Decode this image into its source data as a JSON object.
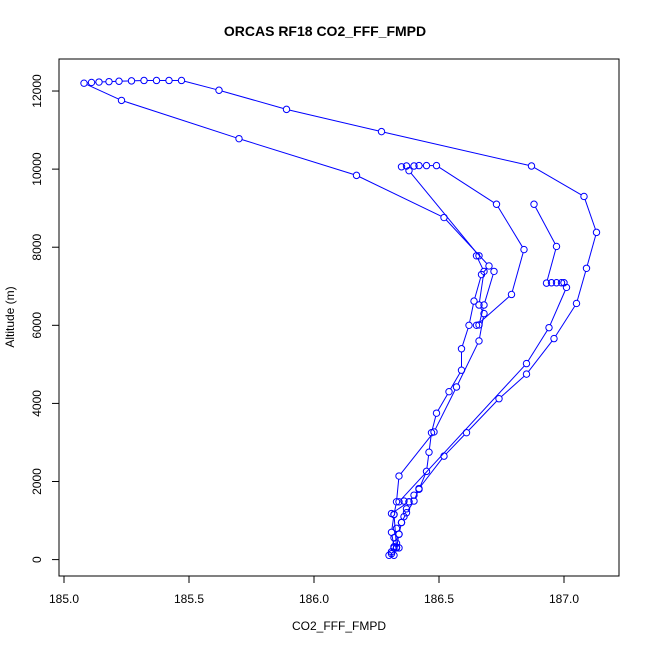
{
  "chart_data": {
    "type": "scatter",
    "title": "ORCAS RF18 CO2_FFF_FMPD",
    "xlabel": "CO2_FFF_FMPD",
    "ylabel": "Altitude (m)",
    "xlim": [
      184.98,
      187.22
    ],
    "ylim": [
      -420,
      12820
    ],
    "x_ticks": [
      {
        "value": 185.0,
        "label": "185.0"
      },
      {
        "value": 185.5,
        "label": "185.5"
      },
      {
        "value": 186.0,
        "label": "186.0"
      },
      {
        "value": 186.5,
        "label": "186.5"
      },
      {
        "value": 187.0,
        "label": "187.0"
      }
    ],
    "y_ticks": [
      {
        "value": 0,
        "label": "0"
      },
      {
        "value": 2000,
        "label": "2000"
      },
      {
        "value": 4000,
        "label": "4000"
      },
      {
        "value": 6000,
        "label": "6000"
      },
      {
        "value": 8000,
        "label": "8000"
      },
      {
        "value": 10000,
        "label": "10000"
      },
      {
        "value": 12000,
        "label": "12000"
      }
    ],
    "grid": false,
    "legend": "none",
    "series": [
      {
        "color": "#0000ff",
        "marker": "open-circle",
        "line": true,
        "points": [
          [
            186.3,
            110
          ],
          [
            186.31,
            200
          ],
          [
            186.32,
            300
          ],
          [
            186.33,
            420
          ],
          [
            186.32,
            560
          ],
          [
            186.34,
            650
          ],
          [
            186.33,
            800
          ],
          [
            186.35,
            950
          ],
          [
            186.36,
            1100
          ],
          [
            186.37,
            1300
          ],
          [
            186.38,
            1480
          ],
          [
            186.4,
            1650
          ],
          [
            186.42,
            1800
          ],
          [
            186.45,
            2260
          ],
          [
            186.46,
            2750
          ],
          [
            186.47,
            3250
          ],
          [
            186.49,
            3750
          ],
          [
            186.54,
            4300
          ],
          [
            186.59,
            4850
          ],
          [
            186.59,
            5400
          ],
          [
            186.62,
            6000
          ],
          [
            186.64,
            6620
          ],
          [
            186.67,
            7300
          ],
          [
            186.7,
            7520
          ],
          [
            186.52,
            8760
          ],
          [
            186.17,
            9840
          ],
          [
            185.7,
            10780
          ],
          [
            185.23,
            11760
          ],
          [
            185.08,
            12200
          ],
          [
            185.11,
            12220
          ],
          [
            185.14,
            12230
          ],
          [
            185.18,
            12240
          ],
          [
            185.22,
            12250
          ],
          [
            185.27,
            12260
          ],
          [
            185.32,
            12270
          ],
          [
            185.37,
            12270
          ],
          [
            185.42,
            12270
          ],
          [
            185.47,
            12270
          ],
          [
            185.62,
            12020
          ],
          [
            185.89,
            11530
          ],
          [
            186.27,
            10960
          ],
          [
            186.87,
            10080
          ],
          [
            187.08,
            9300
          ],
          [
            187.13,
            8380
          ],
          [
            187.09,
            7460
          ],
          [
            187.05,
            6560
          ],
          [
            186.96,
            5660
          ],
          [
            186.85,
            4750
          ],
          [
            186.74,
            4120
          ],
          [
            186.61,
            3250
          ],
          [
            186.52,
            2650
          ],
          [
            186.42,
            1820
          ],
          [
            186.4,
            1500
          ],
          [
            186.37,
            1200
          ],
          [
            186.35,
            950
          ],
          [
            186.34,
            650
          ],
          [
            186.33,
            300
          ],
          [
            186.32,
            110
          ]
        ]
      },
      {
        "color": "#0000ff",
        "marker": "open-circle",
        "line": true,
        "points": [
          [
            186.31,
            150
          ],
          [
            186.32,
            330
          ],
          [
            186.31,
            700
          ],
          [
            186.32,
            1150
          ],
          [
            186.33,
            1480
          ],
          [
            186.34,
            2140
          ],
          [
            186.48,
            3270
          ],
          [
            186.57,
            4420
          ],
          [
            186.66,
            5600
          ],
          [
            186.68,
            6300
          ],
          [
            186.66,
            6520
          ],
          [
            186.68,
            7380
          ],
          [
            186.65,
            7780
          ],
          [
            186.66,
            7780
          ],
          [
            186.38,
            9960
          ],
          [
            186.35,
            10060
          ],
          [
            186.37,
            10080
          ],
          [
            186.4,
            10080
          ],
          [
            186.42,
            10090
          ],
          [
            186.45,
            10090
          ],
          [
            186.49,
            10090
          ],
          [
            186.73,
            9100
          ],
          [
            186.84,
            7940
          ],
          [
            186.79,
            6790
          ],
          [
            186.65,
            6000
          ],
          [
            186.66,
            6010
          ],
          [
            186.68,
            6520
          ],
          [
            186.72,
            7380
          ]
        ]
      },
      {
        "color": "#0000ff",
        "marker": "open-circle",
        "line": true,
        "points": [
          [
            186.88,
            9100
          ],
          [
            186.97,
            8020
          ],
          [
            186.93,
            7080
          ],
          [
            186.95,
            7090
          ],
          [
            186.97,
            7090
          ],
          [
            186.99,
            7090
          ],
          [
            187.0,
            7090
          ],
          [
            187.01,
            6970
          ],
          [
            186.94,
            5940
          ],
          [
            186.85,
            5020
          ],
          [
            186.34,
            1480
          ],
          [
            186.36,
            1500
          ],
          [
            186.38,
            1480
          ],
          [
            186.31,
            1180
          ],
          [
            186.32,
            1160
          ],
          [
            186.33,
            320
          ],
          [
            186.34,
            300
          ]
        ]
      }
    ]
  }
}
